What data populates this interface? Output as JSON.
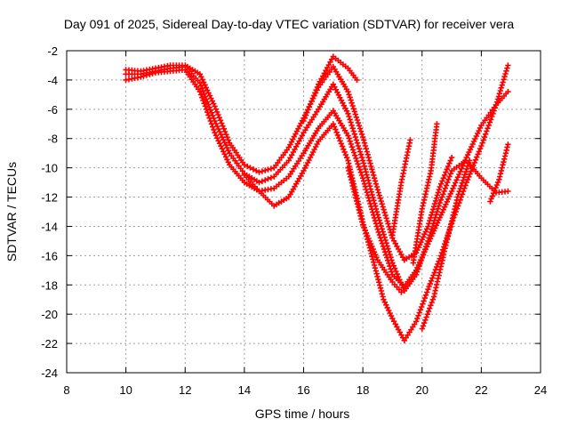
{
  "chart_data": {
    "type": "scatter",
    "title": "Day 091 of 2025, Sidereal Day-to-day VTEC variation (SDTVAR) for receiver vera",
    "xlabel": "GPS time / hours",
    "ylabel": "SDTVAR / TECUs",
    "xlim": [
      8,
      24
    ],
    "ylim": [
      -24,
      -2
    ],
    "xticks": [
      "8",
      "10",
      "12",
      "14",
      "16",
      "18",
      "20",
      "22",
      "24"
    ],
    "yticks": [
      "-2",
      "-4",
      "-6",
      "-8",
      "-10",
      "-12",
      "-14",
      "-16",
      "-18",
      "-20",
      "-22",
      "-24"
    ],
    "grid": true,
    "marker": "plus",
    "color": "#ff0000",
    "series": [
      {
        "points": [
          [
            10.0,
            -3.3
          ],
          [
            10.5,
            -3.4
          ],
          [
            11.0,
            -3.2
          ],
          [
            11.5,
            -3.0
          ],
          [
            12.0,
            -3.0
          ],
          [
            12.5,
            -3.6
          ],
          [
            13.0,
            -5.8
          ],
          [
            13.5,
            -8.3
          ],
          [
            14.0,
            -9.8
          ],
          [
            14.5,
            -10.3
          ],
          [
            15.0,
            -10.0
          ],
          [
            15.5,
            -8.6
          ],
          [
            16.0,
            -6.6
          ],
          [
            16.5,
            -4.5
          ],
          [
            17.0,
            -3.1
          ],
          [
            17.5,
            -4.8
          ],
          [
            18.0,
            -7.9
          ],
          [
            18.5,
            -11.5
          ],
          [
            19.0,
            -14.8
          ],
          [
            19.4,
            -16.3
          ],
          [
            19.8,
            -15.8
          ],
          [
            20.2,
            -14.0
          ],
          [
            20.6,
            -11.3
          ],
          [
            21.0,
            -9.3
          ]
        ]
      },
      {
        "points": [
          [
            10.0,
            -3.6
          ],
          [
            10.5,
            -3.6
          ],
          [
            11.0,
            -3.4
          ],
          [
            11.5,
            -3.2
          ],
          [
            12.0,
            -3.1
          ],
          [
            12.5,
            -4.2
          ],
          [
            13.0,
            -6.8
          ],
          [
            13.5,
            -9.0
          ],
          [
            14.0,
            -10.4
          ],
          [
            14.5,
            -11.0
          ],
          [
            15.0,
            -10.6
          ],
          [
            15.5,
            -9.5
          ],
          [
            16.0,
            -7.6
          ],
          [
            16.5,
            -6.0
          ],
          [
            17.0,
            -4.3
          ],
          [
            17.5,
            -6.3
          ],
          [
            18.0,
            -9.5
          ],
          [
            18.5,
            -13.2
          ],
          [
            19.0,
            -16.5
          ],
          [
            19.4,
            -18.4
          ],
          [
            19.8,
            -17.3
          ],
          [
            20.2,
            -15.0
          ],
          [
            20.6,
            -12.4
          ],
          [
            21.0,
            -10.2
          ],
          [
            21.5,
            -9.5
          ],
          [
            22.0,
            -10.7
          ],
          [
            22.5,
            -11.7
          ],
          [
            22.9,
            -11.6
          ]
        ]
      },
      {
        "points": [
          [
            10.0,
            -4.0
          ],
          [
            10.5,
            -3.8
          ],
          [
            11.0,
            -3.5
          ],
          [
            11.5,
            -3.4
          ],
          [
            12.0,
            -3.3
          ],
          [
            12.5,
            -4.8
          ],
          [
            13.0,
            -7.6
          ],
          [
            13.5,
            -9.8
          ],
          [
            14.0,
            -11.0
          ],
          [
            14.5,
            -11.6
          ],
          [
            15.0,
            -11.4
          ],
          [
            15.5,
            -10.6
          ],
          [
            16.0,
            -9.0
          ],
          [
            16.5,
            -7.3
          ],
          [
            17.0,
            -6.1
          ],
          [
            17.5,
            -7.8
          ],
          [
            18.0,
            -10.7
          ],
          [
            18.5,
            -14.2
          ],
          [
            19.0,
            -17.3
          ],
          [
            19.4,
            -18.1
          ],
          [
            19.8,
            -17.0
          ],
          [
            20.2,
            -15.2
          ],
          [
            20.6,
            -13.4
          ],
          [
            21.0,
            -11.6
          ],
          [
            21.5,
            -9.3
          ],
          [
            22.0,
            -7.1
          ],
          [
            22.5,
            -5.7
          ],
          [
            22.9,
            -4.8
          ]
        ]
      },
      {
        "points": [
          [
            14.0,
            -10.5
          ],
          [
            14.5,
            -11.6
          ],
          [
            15.0,
            -12.6
          ],
          [
            15.5,
            -12.0
          ],
          [
            16.0,
            -10.2
          ],
          [
            16.5,
            -8.2
          ],
          [
            17.0,
            -7.0
          ],
          [
            17.5,
            -9.5
          ],
          [
            18.0,
            -13.7
          ],
          [
            18.7,
            -19.0
          ],
          [
            19.0,
            -20.3
          ],
          [
            19.4,
            -21.8
          ],
          [
            19.8,
            -20.5
          ],
          [
            20.2,
            -18.3
          ],
          [
            20.6,
            -16.2
          ],
          [
            21.0,
            -13.8
          ],
          [
            21.5,
            -11.0
          ],
          [
            22.0,
            -8.5
          ],
          [
            22.5,
            -5.7
          ],
          [
            22.9,
            -3.0
          ]
        ]
      },
      {
        "points": [
          [
            16.0,
            -6.8
          ],
          [
            16.5,
            -4.3
          ],
          [
            17.0,
            -2.4
          ],
          [
            17.5,
            -3.2
          ],
          [
            17.8,
            -4.0
          ]
        ]
      },
      {
        "points": [
          [
            17.5,
            -10.0
          ],
          [
            18.0,
            -13.9
          ],
          [
            18.5,
            -16.3
          ],
          [
            19.0,
            -17.8
          ],
          [
            19.3,
            -18.5
          ]
        ]
      },
      {
        "points": [
          [
            19.0,
            -14.6
          ],
          [
            19.3,
            -11.0
          ],
          [
            19.6,
            -8.1
          ]
        ]
      },
      {
        "points": [
          [
            19.7,
            -16.5
          ],
          [
            20.0,
            -12.8
          ],
          [
            20.3,
            -10.2
          ],
          [
            20.5,
            -7.0
          ]
        ]
      },
      {
        "points": [
          [
            20.0,
            -21.0
          ],
          [
            20.4,
            -18.8
          ],
          [
            20.8,
            -15.3
          ],
          [
            21.2,
            -12.0
          ],
          [
            21.6,
            -9.5
          ]
        ]
      },
      {
        "points": [
          [
            22.3,
            -12.3
          ],
          [
            22.6,
            -10.8
          ],
          [
            22.9,
            -8.4
          ]
        ]
      }
    ]
  }
}
